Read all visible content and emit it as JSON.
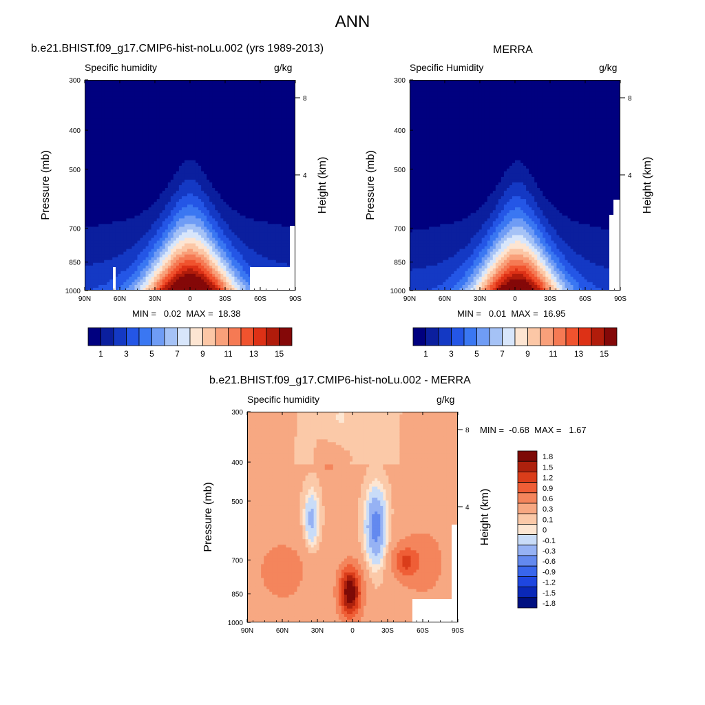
{
  "page": {
    "title": "ANN"
  },
  "colors": {
    "sequential": [
      "#00007f",
      "#0b1f9e",
      "#1439c4",
      "#2456e6",
      "#3a77f2",
      "#6f9cf5",
      "#a5c2f6",
      "#d8e6fb",
      "#fde5d2",
      "#fcc7a6",
      "#f9a07a",
      "#f57a54",
      "#f0532e",
      "#dd3116",
      "#b11c0b",
      "#840808"
    ],
    "diverging": [
      "#001080",
      "#0a28b8",
      "#1e46e0",
      "#3966ec",
      "#6389ef",
      "#96b2f4",
      "#c9dcf8",
      "#fde6d2",
      "#fbc9a8",
      "#f7a882",
      "#f4855c",
      "#ef5e36",
      "#da3d1a",
      "#ad210d",
      "#7d0a06"
    ],
    "missing": "#ffffff"
  },
  "panels": [
    {
      "id": "model",
      "title": "b.e21.BHIST.f09_g17.CMIP6-hist-noLu.002 (yrs 1989-2013)",
      "left_label": "Specific humidity",
      "right_label": "g/kg",
      "min_max": "MIN =   0.02  MAX =  18.38",
      "ylabel": "Pressure (mb)",
      "ylabel_right": "Height (km)",
      "x_ticks": [
        "90N",
        "60N",
        "30N",
        "0",
        "30S",
        "60S",
        "90S"
      ],
      "y_ticks": [
        "300",
        "400",
        "500",
        "700",
        "850",
        "1000"
      ],
      "height_ticks": [
        "8",
        "4"
      ]
    },
    {
      "id": "obs",
      "title": "MERRA",
      "left_label": "Specific Humidity",
      "right_label": "g/kg",
      "min_max": "MIN =   0.01  MAX =  16.95",
      "ylabel": "Pressure (mb)",
      "ylabel_right": "Height (km)",
      "x_ticks": [
        "90N",
        "60N",
        "30N",
        "0",
        "30S",
        "60S",
        "90S"
      ],
      "y_ticks": [
        "300",
        "400",
        "500",
        "700",
        "850",
        "1000"
      ],
      "height_ticks": [
        "8",
        "4"
      ]
    },
    {
      "id": "diff",
      "title": "b.e21.BHIST.f09_g17.CMIP6-hist-noLu.002 - MERRA",
      "left_label": "Specific humidity",
      "right_label": "g/kg",
      "min_max": "MIN =  -0.68  MAX =   1.67",
      "ylabel": "Pressure (mb)",
      "ylabel_right": "Height (km)",
      "x_ticks": [
        "90N",
        "60N",
        "30N",
        "0",
        "30S",
        "60S",
        "90S"
      ],
      "y_ticks": [
        "300",
        "400",
        "500",
        "700",
        "850",
        "1000"
      ],
      "height_ticks": [
        "8",
        "4"
      ]
    }
  ],
  "colorbars": {
    "sequential_labels": [
      "1",
      "3",
      "5",
      "7",
      "9",
      "11",
      "13",
      "15"
    ],
    "diverging_labels": [
      "1.8",
      "1.5",
      "1.2",
      "0.9",
      "0.6",
      "0.3",
      "0.1",
      "0",
      "-0.1",
      "-0.3",
      "-0.6",
      "-0.9",
      "-1.2",
      "-1.5",
      "-1.8"
    ]
  },
  "chart_data": [
    {
      "type": "heatmap",
      "title": "b.e21.BHIST.f09_g17.CMIP6-hist-noLu.002 (yrs 1989-2013)",
      "variable": "Specific humidity",
      "units": "g/kg",
      "x": [
        "90N",
        "60N",
        "30N",
        "0",
        "30S",
        "60S",
        "90S"
      ],
      "y_pressure_mb": [
        1000,
        850,
        700,
        500,
        400,
        300
      ],
      "xlim": [
        90,
        -90
      ],
      "ylim": [
        1000,
        300
      ],
      "min": 0.02,
      "max": 18.38,
      "levels": [
        1,
        2,
        3,
        4,
        5,
        6,
        7,
        8,
        9,
        10,
        11,
        12,
        13,
        14,
        15
      ],
      "description_peak_lat": 0,
      "surface_peak_gkg": 18.38
    },
    {
      "type": "heatmap",
      "title": "MERRA",
      "variable": "Specific Humidity",
      "units": "g/kg",
      "x": [
        "90N",
        "60N",
        "30N",
        "0",
        "30S",
        "60S",
        "90S"
      ],
      "y_pressure_mb": [
        1000,
        850,
        700,
        500,
        400,
        300
      ],
      "xlim": [
        90,
        -90
      ],
      "ylim": [
        1000,
        300
      ],
      "min": 0.01,
      "max": 16.95,
      "levels": [
        1,
        2,
        3,
        4,
        5,
        6,
        7,
        8,
        9,
        10,
        11,
        12,
        13,
        14,
        15
      ]
    },
    {
      "type": "heatmap",
      "title": "b.e21.BHIST.f09_g17.CMIP6-hist-noLu.002 - MERRA",
      "variable": "Specific humidity",
      "units": "g/kg",
      "x": [
        "90N",
        "60N",
        "30N",
        "0",
        "30S",
        "60S",
        "90S"
      ],
      "y_pressure_mb": [
        1000,
        850,
        700,
        500,
        400,
        300
      ],
      "xlim": [
        90,
        -90
      ],
      "ylim": [
        1000,
        300
      ],
      "min": -0.68,
      "max": 1.67,
      "levels": [
        -1.8,
        -1.5,
        -1.2,
        -0.9,
        -0.6,
        -0.3,
        -0.1,
        0,
        0.1,
        0.3,
        0.6,
        0.9,
        1.2,
        1.5,
        1.8
      ]
    }
  ]
}
